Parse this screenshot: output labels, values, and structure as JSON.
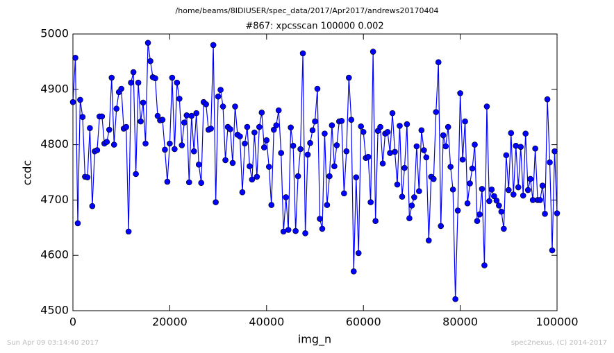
{
  "chart_data": {
    "type": "line",
    "title": "/home/beams/8IDIUSER/spec_data/2017/Apr2017/andrews20170404",
    "subtitle": "#867: xpcsscan 100000 0.002",
    "x_label": "img_n",
    "y_label": "ccdc",
    "annotations": [
      "Sun Apr 09 03:14:40 2017",
      "spec2nexus, (C) 2014-2017"
    ],
    "color": "#0000ff",
    "marker": "circle",
    "xlim": [
      0,
      100000
    ],
    "xticks": [
      0,
      20000,
      40000,
      60000,
      80000,
      100000
    ],
    "ylim": [
      4500,
      5000
    ],
    "yticks": [
      4500,
      4600,
      4700,
      4800,
      4900,
      5000
    ],
    "grid": false,
    "x": [
      0,
      500,
      1000,
      1500,
      2000,
      2500,
      3000,
      3500,
      4000,
      4500,
      5000,
      5500,
      6000,
      6500,
      7000,
      7500,
      8000,
      8500,
      9000,
      9500,
      10000,
      10500,
      11000,
      11500,
      12000,
      12500,
      13000,
      13500,
      14000,
      14500,
      15000,
      15500,
      16000,
      16500,
      17000,
      17500,
      18000,
      18500,
      19000,
      19500,
      20000,
      20500,
      21000,
      21500,
      22000,
      22500,
      23000,
      23500,
      24000,
      24500,
      25000,
      25500,
      26000,
      26500,
      27000,
      27500,
      28000,
      28500,
      29000,
      29500,
      30000,
      30500,
      31000,
      31500,
      32000,
      32500,
      33000,
      33500,
      34000,
      34500,
      35000,
      35500,
      36000,
      36500,
      37000,
      37500,
      38000,
      38500,
      39000,
      39500,
      40000,
      40500,
      41000,
      41500,
      42000,
      42500,
      43000,
      43500,
      44000,
      44500,
      45000,
      45500,
      46000,
      46500,
      47000,
      47500,
      48000,
      48500,
      49000,
      49500,
      50000,
      50500,
      51000,
      51500,
      52000,
      52500,
      53000,
      53500,
      54000,
      54500,
      55000,
      55500,
      56000,
      56500,
      57000,
      57500,
      58000,
      58500,
      59000,
      59500,
      60000,
      60500,
      61000,
      61500,
      62000,
      62500,
      63000,
      63500,
      64000,
      64500,
      65000,
      65500,
      66000,
      66500,
      67000,
      67500,
      68000,
      68500,
      69000,
      69500,
      70000,
      70500,
      71000,
      71500,
      72000,
      72500,
      73000,
      73500,
      74000,
      74500,
      75000,
      75500,
      76000,
      76500,
      77000,
      77500,
      78000,
      78500,
      79000,
      79500,
      80000,
      80500,
      81000,
      81500,
      82000,
      82500,
      83000,
      83500,
      84000,
      84500,
      85000,
      85500,
      86000,
      86500,
      87000,
      87500,
      88000,
      88500,
      89000,
      89500,
      90000,
      90500,
      91000,
      91500,
      92000,
      92500,
      93000,
      93500,
      94000,
      94500,
      95000,
      95500,
      96000,
      96500,
      97000,
      97500,
      98000,
      98500,
      99000,
      99500,
      100000
    ],
    "values": [
      4877,
      4957,
      4658,
      4881,
      4850,
      4742,
      4741,
      4830,
      4689,
      4788,
      4790,
      4851,
      4851,
      4802,
      4805,
      4827,
      4921,
      4800,
      4865,
      4895,
      4901,
      4829,
      4832,
      4643,
      4912,
      4931,
      4747,
      4912,
      4842,
      4876,
      4802,
      4984,
      4951,
      4922,
      4920,
      4852,
      4844,
      4845,
      4791,
      4733,
      4802,
      4921,
      4792,
      4912,
      4883,
      4799,
      4840,
      4853,
      4732,
      4852,
      4788,
      4857,
      4764,
      4731,
      4877,
      4873,
      4827,
      4829,
      4980,
      4696,
      4887,
      4899,
      4869,
      4772,
      4832,
      4828,
      4767,
      4869,
      4818,
      4815,
      4714,
      4802,
      4832,
      4761,
      4737,
      4822,
      4742,
      4832,
      4858,
      4795,
      4808,
      4760,
      4691,
      4827,
      4835,
      4862,
      4785,
      4643,
      4705,
      4646,
      4831,
      4798,
      4644,
      4743,
      4792,
      4965,
      4640,
      4782,
      4803,
      4826,
      4842,
      4901,
      4666,
      4648,
      4820,
      4691,
      4743,
      4835,
      4761,
      4799,
      4842,
      4843,
      4712,
      4788,
      4921,
      4845,
      4571,
      4741,
      4604,
      4833,
      4823,
      4776,
      4778,
      4696,
      4968,
      4662,
      4825,
      4832,
      4766,
      4820,
      4823,
      4785,
      4857,
      4787,
      4728,
      4834,
      4706,
      4758,
      4837,
      4667,
      4690,
      4705,
      4797,
      4716,
      4826,
      4790,
      4777,
      4627,
      4742,
      4738,
      4859,
      4949,
      4653,
      4817,
      4797,
      4832,
      4760,
      4719,
      4521,
      4681,
      4893,
      4773,
      4842,
      4694,
      4730,
      4757,
      4800,
      4662,
      4674,
      4720,
      4582,
      4869,
      4698,
      4719,
      4707,
      4699,
      4690,
      4679,
      4648,
      4781,
      4718,
      4821,
      4710,
      4798,
      4723,
      4796,
      4708,
      4820,
      4718,
      4738,
      4700,
      4793,
      4700,
      4700,
      4726,
      4675,
      4882,
      4768,
      4609,
      4788,
      4676
    ]
  }
}
